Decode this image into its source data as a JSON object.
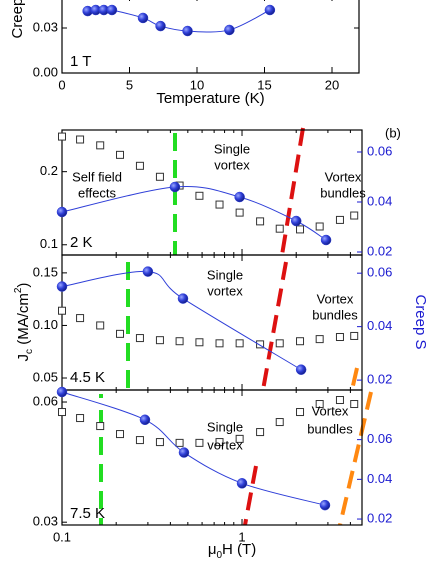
{
  "chart_data": [
    {
      "type": "scatter",
      "ylabel": "Creep S",
      "xlabel": "Temperature (K)",
      "annotations": [
        {
          "lines": [
            "1 T"
          ]
        }
      ],
      "x": [
        1.9,
        2.5,
        3.1,
        3.7,
        6.0,
        7.3,
        9.3,
        12.4,
        15.4
      ],
      "values": [
        0.0413,
        0.042,
        0.042,
        0.042,
        0.0367,
        0.0313,
        0.028,
        0.0287,
        0.042
      ],
      "color": "#2f3fd8",
      "line": true,
      "xlim": [
        0,
        22
      ],
      "ylim": [
        0,
        0.052
      ],
      "xticks": [
        0,
        5,
        10,
        15,
        20
      ],
      "yticks": [
        {
          "value": 0,
          "label": "0.00"
        },
        0.03
      ]
    },
    {
      "type": "scatter",
      "xlog": true,
      "xlim": [
        0.1,
        4.64
      ],
      "xticks": [
        0.1,
        1
      ],
      "xminor": [
        0.2,
        0.3,
        0.4,
        0.5,
        0.6,
        0.7,
        0.8,
        0.9,
        2,
        3,
        4
      ],
      "annotations": [
        {
          "lines": [
            "Self field",
            "effects"
          ]
        },
        {
          "lines": [
            "Single",
            "vortex"
          ]
        },
        {
          "lines": [
            "Vortex",
            "bundles"
          ]
        },
        {
          "lines": [
            "2 K"
          ]
        },
        {
          "lines": [
            "(b)"
          ]
        }
      ],
      "ylim": [
        0.086,
        0.257
      ],
      "yticks": [
        0.1,
        0.2
      ],
      "y2lim": [
        0.0188,
        0.0688
      ],
      "y2ticks": [
        0.02,
        0.04,
        0.06
      ],
      "series": [
        {
          "marker": "square",
          "color": "#333333",
          "x": [
            0.1,
            0.126,
            0.163,
            0.21,
            0.271,
            0.35,
            0.45,
            0.58,
            0.75,
            0.97,
            1.26,
            1.62,
            2.1,
            2.7,
            3.5,
            4.2
          ],
          "values": [
            0.248,
            0.244,
            0.236,
            0.223,
            0.208,
            0.193,
            0.181,
            0.167,
            0.155,
            0.144,
            0.132,
            0.122,
            0.121,
            0.125,
            0.134,
            0.14
          ]
        },
        {
          "marker": "circle",
          "axis": "y2",
          "line": true,
          "color": "#2f3fd8",
          "x": [
            0.1,
            0.424,
            0.97,
            2.0,
            2.93
          ],
          "values": [
            0.036,
            0.046,
            0.042,
            0.0324,
            0.0248
          ]
        }
      ]
    },
    {
      "type": "scatter",
      "xlog": true,
      "xlim": [
        0.1,
        4.64
      ],
      "xticks": [
        0.1,
        1
      ],
      "xminor": [
        0.2,
        0.3,
        0.4,
        0.5,
        0.6,
        0.7,
        0.8,
        0.9,
        2,
        3,
        4
      ],
      "ylabel_parts": [
        "J",
        "c",
        " (MA/cm",
        "2",
        ")"
      ],
      "y2label": "Creep S",
      "annotations": [
        {
          "lines": [
            "Single",
            "vortex"
          ]
        },
        {
          "lines": [
            "Vortex",
            "bundles"
          ]
        },
        {
          "lines": [
            "4.5 K"
          ]
        }
      ],
      "ylim": [
        0.0386,
        0.167
      ],
      "yticks": [
        {
          "value": 0.05,
          "label": "0.05"
        },
        {
          "value": 0.1,
          "label": "0.10"
        },
        0.15
      ],
      "y2lim": [
        0.0163,
        0.0668
      ],
      "y2ticks": [
        0.02,
        0.04,
        0.06
      ],
      "series": [
        {
          "marker": "square",
          "color": "#333333",
          "x": [
            0.1,
            0.126,
            0.163,
            0.21,
            0.271,
            0.35,
            0.45,
            0.58,
            0.75,
            0.97,
            1.26,
            1.62,
            2.1,
            2.7,
            3.5,
            4.2
          ],
          "values": [
            0.114,
            0.107,
            0.1,
            0.092,
            0.088,
            0.086,
            0.085,
            0.084,
            0.083,
            0.083,
            0.082,
            0.083,
            0.085,
            0.087,
            0.089,
            0.09
          ]
        },
        {
          "marker": "circle",
          "axis": "y2",
          "line": true,
          "color": "#2f3fd8",
          "x": [
            0.1,
            0.3,
            0.47,
            2.13
          ],
          "values": [
            0.055,
            0.0606,
            0.0505,
            0.0239
          ]
        }
      ]
    },
    {
      "type": "scatter",
      "xlog": true,
      "xlim": [
        0.1,
        4.64
      ],
      "xticks": [
        0.1,
        1
      ],
      "xminor": [
        0.2,
        0.3,
        0.4,
        0.5,
        0.6,
        0.7,
        0.8,
        0.9,
        2,
        3,
        4
      ],
      "xlabel_parts": [
        "μ",
        "0",
        "H (T)"
      ],
      "annotations": [
        {
          "lines": [
            "Single",
            "vortex"
          ]
        },
        {
          "lines": [
            "Vortex",
            "bundles"
          ]
        },
        {
          "lines": [
            "7.5 K"
          ]
        }
      ],
      "ylim": [
        0.0293,
        0.063
      ],
      "yticks": [
        0.03,
        0.06
      ],
      "y2lim": [
        0.017,
        0.085
      ],
      "y2ticks": [
        0.02,
        0.04,
        0.06
      ],
      "series": [
        {
          "marker": "square",
          "color": "#333333",
          "x": [
            0.1,
            0.126,
            0.163,
            0.21,
            0.271,
            0.35,
            0.45,
            0.58,
            0.75,
            0.97,
            1.26,
            1.62,
            2.1,
            2.7,
            3.5,
            4.2
          ],
          "values": [
            0.0575,
            0.056,
            0.054,
            0.052,
            0.0505,
            0.05,
            0.0498,
            0.0498,
            0.05,
            0.0508,
            0.0525,
            0.055,
            0.0575,
            0.0595,
            0.0605,
            0.0595
          ]
        },
        {
          "marker": "circle",
          "axis": "y2",
          "line": true,
          "color": "#2f3fd8",
          "x": [
            0.1,
            0.289,
            0.476,
            1.0,
            2.89
          ],
          "values": [
            0.084,
            0.07,
            0.0535,
            0.038,
            0.027
          ]
        }
      ]
    }
  ]
}
